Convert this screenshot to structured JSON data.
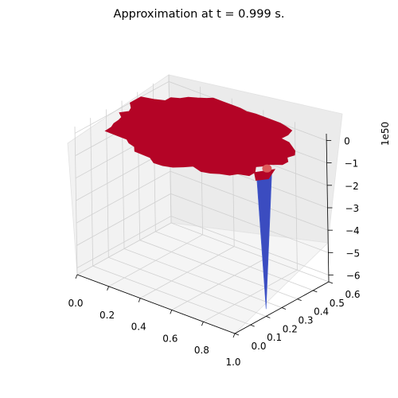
{
  "chart_data": {
    "type": "surface3d",
    "title": "Approximation at t = 0.999 s.",
    "x_axis": {
      "label": "",
      "ticks": [
        "0.0",
        "0.2",
        "0.4",
        "0.6",
        "0.8",
        "1.0"
      ],
      "range": [
        0,
        1
      ]
    },
    "y_axis": {
      "label": "",
      "ticks": [
        "0.0",
        "0.1",
        "0.2",
        "0.3",
        "0.4",
        "0.5",
        "0.6"
      ],
      "range": [
        0,
        0.6
      ]
    },
    "z_axis": {
      "label": "",
      "ticks": [
        "0",
        "−1",
        "−2",
        "−3",
        "−4",
        "−5",
        "−6"
      ],
      "range": [
        -6.3,
        0.3
      ],
      "offset_text": "1e50"
    },
    "surface": {
      "description_values": {
        "plateau_value": 0,
        "spike_location": {
          "x": 0.95,
          "y": 0.25
        },
        "spike_min_value": -6.3
      },
      "colormap": "coolwarm",
      "colors": {
        "high": "#b40426",
        "low": "#3b4cc0",
        "mid": "#dd5b5b"
      }
    },
    "grid": true,
    "pane_colors": {
      "left": "#f2f2f2",
      "right": "#ebebeb",
      "floor": "#f5f5f5"
    }
  }
}
